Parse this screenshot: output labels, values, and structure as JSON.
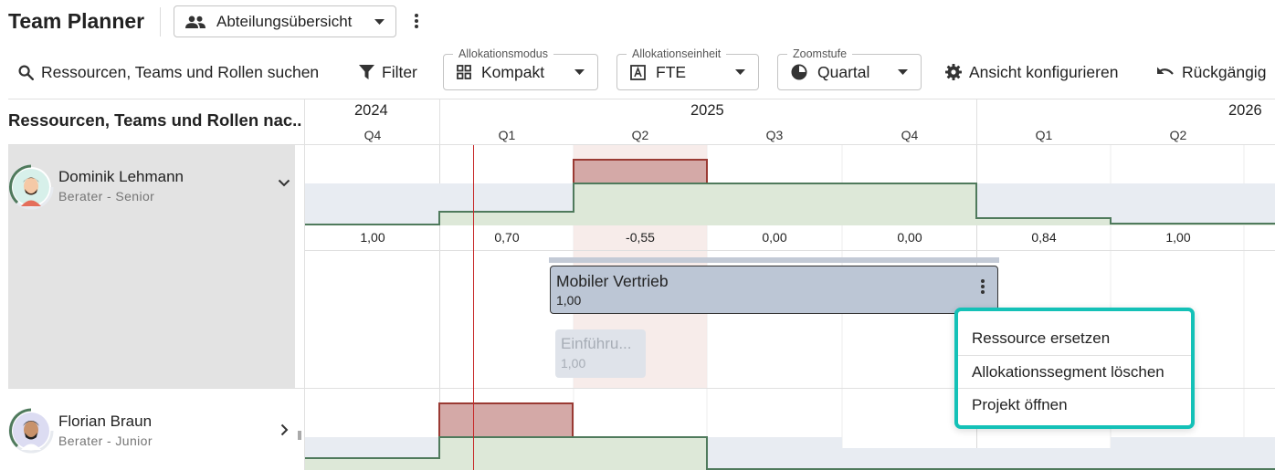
{
  "header": {
    "app_title": "Team Planner",
    "view_selector": {
      "label": "Abteilungsübersicht",
      "icon": "people-icon"
    }
  },
  "toolbar": {
    "search_label": "Ressourcen, Teams und Rollen suchen",
    "filter_label": "Filter",
    "allocation_mode": {
      "legend": "Allokationsmodus",
      "value": "Kompakt",
      "icon": "grid-icon"
    },
    "allocation_unit": {
      "legend": "Allokationseinheit",
      "value": "FTE",
      "icon": "letter-a-box-icon"
    },
    "zoom": {
      "legend": "Zoomstufe",
      "value": "Quartal",
      "icon": "pie-clock-icon"
    },
    "configure_label": "Ansicht konfigurieren",
    "undo_label": "Rückgängig"
  },
  "grid": {
    "resource_column_header": "Ressourcen, Teams und Rollen nac...",
    "years": [
      "2024",
      "2025",
      "2026"
    ],
    "quarters": [
      "Q4",
      "Q1",
      "Q2",
      "Q3",
      "Q4",
      "Q1",
      "Q2"
    ]
  },
  "resources": [
    {
      "name": "Dominik Lehmann",
      "role": "Berater - Senior",
      "expanded": true,
      "availability": [
        "1,00",
        "0,70",
        "-0,55",
        "0,00",
        "0,00",
        "0,84",
        "1,00"
      ],
      "allocations": [
        {
          "project": "Mobiler Vertrieb",
          "value": "1,00"
        },
        {
          "project": "Einführu...",
          "value": "1,00"
        }
      ]
    },
    {
      "name": "Florian Braun",
      "role": "Berater - Junior",
      "expanded": false
    }
  ],
  "context_menu": {
    "items": [
      "Ressource ersetzen",
      "Allokationssegment löschen",
      "Projekt öffnen"
    ]
  },
  "colors": {
    "accent_teal": "#14c1b7",
    "capacity_green": "#dde8d8",
    "capacity_line": "#4f7a5c",
    "over_alloc_red": "#d4a9a7",
    "over_alloc_line": "#9a3a33",
    "today_line": "#c62828",
    "card_blue": "#bcc6d5"
  }
}
